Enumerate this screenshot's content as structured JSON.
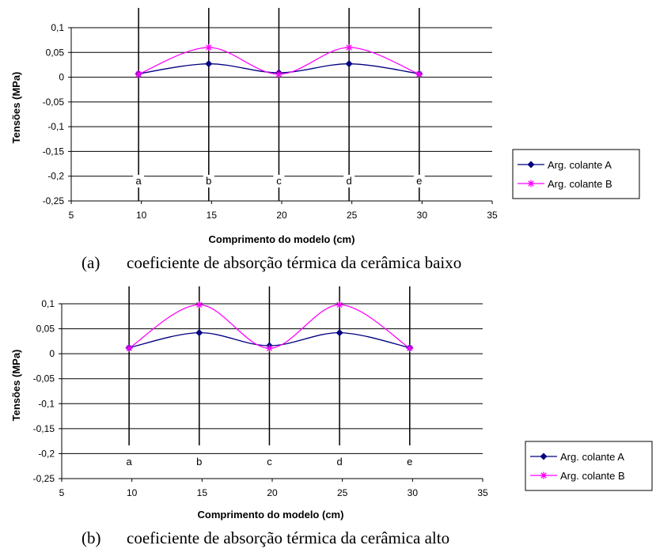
{
  "chart_data": [
    {
      "type": "line",
      "xlabel": "Comprimento do modelo (cm)",
      "ylabel": "Tensões (MPa)",
      "xlim": [
        5,
        35
      ],
      "ylim": [
        -0.25,
        0.1
      ],
      "xticks": [
        5,
        10,
        15,
        20,
        25,
        30,
        35
      ],
      "yticks": [
        0.1,
        0.05,
        0,
        -0.05,
        -0.1,
        -0.15,
        -0.2,
        -0.25
      ],
      "yticklabels": [
        "0,1",
        "0,05",
        "0",
        "-0,05",
        "-0,1",
        "-0,15",
        "-0,2",
        "-0,25"
      ],
      "grid": "horizontal",
      "legend_position": "right",
      "marker_lines": [
        {
          "label": "a",
          "x": 9.8
        },
        {
          "label": "b",
          "x": 14.8
        },
        {
          "label": "c",
          "x": 19.8
        },
        {
          "label": "d",
          "x": 24.8
        },
        {
          "label": "e",
          "x": 29.8
        }
      ],
      "series": [
        {
          "name": "Arg. colante A",
          "color": "#000080",
          "marker": "diamond",
          "x": [
            9.8,
            14.8,
            19.8,
            24.8,
            29.8
          ],
          "y": [
            0.007,
            0.027,
            0.009,
            0.027,
            0.007
          ]
        },
        {
          "name": "Arg. colante B",
          "color": "#ff00ff",
          "marker": "asterisk",
          "x": [
            9.8,
            14.8,
            19.8,
            24.8,
            29.8
          ],
          "y": [
            0.006,
            0.06,
            0.006,
            0.06,
            0.006
          ]
        }
      ],
      "caption": {
        "label": "(a)",
        "text": "coeficiente de absorção térmica da cerâmica baixo"
      }
    },
    {
      "type": "line",
      "xlabel": "Comprimento do modelo (cm)",
      "ylabel": "Tensões (MPa)",
      "xlim": [
        5,
        35
      ],
      "ylim": [
        -0.25,
        0.1
      ],
      "xticks": [
        5,
        10,
        15,
        20,
        25,
        30,
        35
      ],
      "yticks": [
        0.1,
        0.05,
        0,
        -0.05,
        -0.1,
        -0.15,
        -0.2,
        -0.25
      ],
      "yticklabels": [
        "0,1",
        "0,05",
        "0",
        "-0,05",
        "-0,1",
        "-0,15",
        "-0,2",
        "-0,25"
      ],
      "grid": "horizontal",
      "legend_position": "right",
      "marker_lines": [
        {
          "label": "a",
          "x": 9.8
        },
        {
          "label": "b",
          "x": 14.8
        },
        {
          "label": "c",
          "x": 19.8
        },
        {
          "label": "d",
          "x": 24.8
        },
        {
          "label": "e",
          "x": 29.8
        }
      ],
      "series": [
        {
          "name": "Arg. colante A",
          "color": "#000080",
          "marker": "diamond",
          "x": [
            9.8,
            14.8,
            19.8,
            24.8,
            29.8
          ],
          "y": [
            0.012,
            0.042,
            0.016,
            0.042,
            0.012
          ]
        },
        {
          "name": "Arg. colante B",
          "color": "#ff00ff",
          "marker": "asterisk",
          "x": [
            9.8,
            14.8,
            19.8,
            24.8,
            29.8
          ],
          "y": [
            0.011,
            0.098,
            0.011,
            0.098,
            0.011
          ]
        }
      ],
      "caption": {
        "label": "(b)",
        "text": "coeficiente de absorção térmica da cerâmica alto"
      }
    }
  ]
}
